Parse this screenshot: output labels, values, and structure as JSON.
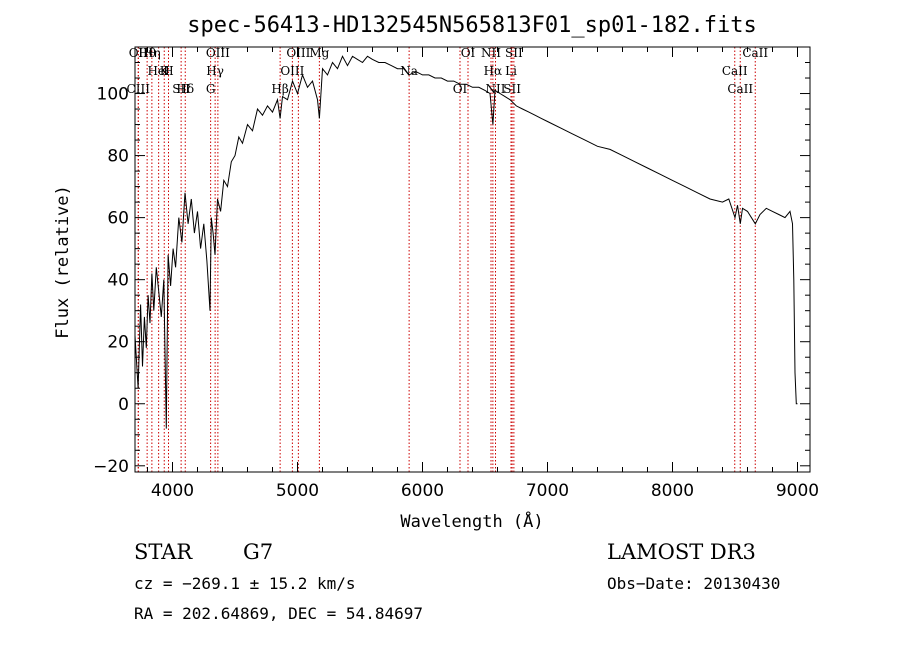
{
  "chart_data": {
    "type": "line",
    "title": "spec-56413-HD132545N565813F01_sp01-182.fits",
    "xlabel": "Wavelength (Å)",
    "ylabel": "Flux (relative)",
    "xlim": [
      3700,
      9100
    ],
    "ylim": [
      -22,
      115
    ],
    "x_ticks": [
      4000,
      5000,
      6000,
      7000,
      8000,
      9000
    ],
    "y_ticks": [
      -20,
      0,
      20,
      40,
      60,
      80,
      100
    ],
    "x_minor_step": 200,
    "y_minor_step": 5,
    "series": [
      {
        "name": "spectrum",
        "x": [
          3700,
          3725,
          3745,
          3760,
          3775,
          3790,
          3805,
          3820,
          3835,
          3850,
          3870,
          3890,
          3910,
          3930,
          3950,
          3965,
          3985,
          4005,
          4025,
          4050,
          4075,
          4100,
          4125,
          4150,
          4175,
          4200,
          4225,
          4250,
          4275,
          4300,
          4310,
          4325,
          4340,
          4360,
          4385,
          4410,
          4440,
          4470,
          4500,
          4530,
          4560,
          4600,
          4640,
          4680,
          4720,
          4760,
          4800,
          4840,
          4861,
          4880,
          4920,
          4960,
          5000,
          5040,
          5080,
          5120,
          5160,
          5175,
          5200,
          5240,
          5280,
          5320,
          5360,
          5400,
          5440,
          5480,
          5520,
          5560,
          5600,
          5650,
          5700,
          5750,
          5800,
          5850,
          5890,
          5950,
          6000,
          6050,
          6100,
          6150,
          6200,
          6250,
          6300,
          6350,
          6400,
          6450,
          6500,
          6540,
          6563,
          6580,
          6620,
          6660,
          6700,
          6750,
          6800,
          6850,
          6900,
          6950,
          7000,
          7100,
          7200,
          7300,
          7400,
          7500,
          7600,
          7700,
          7800,
          7900,
          8000,
          8100,
          8200,
          8300,
          8400,
          8450,
          8500,
          8520,
          8542,
          8560,
          8600,
          8662,
          8700,
          8750,
          8800,
          8850,
          8900,
          8940,
          8960,
          8970,
          8980,
          8990,
          9000
        ],
        "y": [
          22,
          5,
          32,
          12,
          28,
          18,
          35,
          26,
          42,
          30,
          44,
          36,
          28,
          40,
          -8,
          48,
          38,
          50,
          44,
          60,
          52,
          68,
          58,
          66,
          55,
          62,
          50,
          58,
          46,
          30,
          60,
          55,
          48,
          66,
          62,
          72,
          70,
          78,
          80,
          86,
          84,
          90,
          88,
          95,
          93,
          96,
          94,
          98,
          92,
          99,
          98,
          104,
          100,
          106,
          102,
          104,
          98,
          92,
          108,
          106,
          110,
          108,
          112,
          109,
          112,
          111,
          110,
          112,
          111,
          110,
          110,
          109,
          108,
          108,
          106,
          107,
          106,
          106,
          105,
          105,
          104,
          104,
          103,
          103,
          102,
          102,
          101,
          100,
          90,
          101,
          100,
          99,
          98,
          96,
          95,
          94,
          93,
          92,
          91,
          89,
          87,
          85,
          83,
          82,
          80,
          78,
          76,
          74,
          72,
          70,
          68,
          66,
          65,
          66,
          60,
          64,
          58,
          63,
          62,
          58,
          61,
          63,
          62,
          61,
          60,
          62,
          58,
          40,
          10,
          0,
          0
        ]
      }
    ],
    "line_markers": [
      {
        "label": "Hθ",
        "x": 3797
      },
      {
        "label": "K",
        "x": 3934
      },
      {
        "label": "Hδ",
        "x": 4102
      },
      {
        "label": "OII",
        "x": 3727
      },
      {
        "label": "HeI",
        "x": 3889
      },
      {
        "label": "SII",
        "x": 4069
      },
      {
        "label": "OIII",
        "x": 4363
      },
      {
        "label": "Hγ",
        "x": 4341
      },
      {
        "label": "CIII",
        "x": 3726
      },
      {
        "label": "Hη",
        "x": 3835
      },
      {
        "label": "H",
        "x": 3968
      },
      {
        "label": "G",
        "x": 4305
      },
      {
        "label": "OIII",
        "x": 5007
      },
      {
        "label": "OIII",
        "x": 4959
      },
      {
        "label": "Hβ",
        "x": 4861
      },
      {
        "label": "Mg",
        "x": 5175
      },
      {
        "label": "Na",
        "x": 5893
      },
      {
        "label": "OI",
        "x": 6300
      },
      {
        "label": "OI",
        "x": 6364
      },
      {
        "label": "Hα",
        "x": 6563
      },
      {
        "label": "SII",
        "x": 6717
      },
      {
        "label": "NII",
        "x": 6548
      },
      {
        "label": "Li",
        "x": 6708
      },
      {
        "label": "NII",
        "x": 6584
      },
      {
        "label": "SII",
        "x": 6731
      },
      {
        "label": "CaII",
        "x": 8498
      },
      {
        "label": "CaII",
        "x": 8542
      },
      {
        "label": "CaII",
        "x": 8662
      }
    ]
  },
  "info": {
    "object_class": "STAR",
    "subclass": "G7",
    "survey": "LAMOST DR3",
    "cz": "cz = −269.1 ± 15.2 km/s",
    "obs_date": "Obs−Date: 20130430",
    "radec": "RA = 202.64869, DEC =  54.84697"
  },
  "colors": {
    "line_marker": "#cc0000",
    "spectrum": "#000000"
  }
}
